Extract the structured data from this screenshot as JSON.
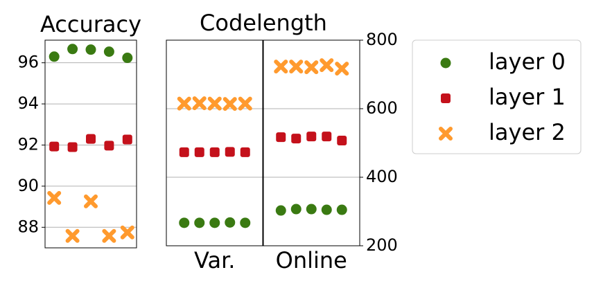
{
  "chart_data": [
    {
      "type": "scatter",
      "title": "Accuracy",
      "categories": [
        null,
        null,
        null,
        null,
        null
      ],
      "ylim": [
        87,
        97.1
      ],
      "yticks": [
        88,
        90,
        92,
        94,
        96
      ],
      "grid": true,
      "series": [
        {
          "color": "#3a7a12",
          "marker": "circle",
          "values": [
            96.3,
            96.67,
            96.64,
            96.54,
            96.24
          ]
        },
        {
          "color": "#c4111b",
          "marker": "square",
          "values": [
            91.93,
            91.9,
            92.3,
            91.97,
            92.27
          ]
        },
        {
          "color": "#ff9a2e",
          "marker": "x",
          "values": [
            89.43,
            87.58,
            89.26,
            87.58,
            87.75
          ]
        }
      ]
    },
    {
      "type": "grouped-scatter",
      "title": "Codelength",
      "groups": [
        "Var.",
        "Online"
      ],
      "points_per_group": 5,
      "y2lim": [
        200,
        800
      ],
      "y2ticks": [
        200,
        400,
        600,
        800
      ],
      "grid": true,
      "legend": "outside right",
      "series": [
        {
          "name": "layer 0",
          "color": "#3a7a12",
          "marker": "circle",
          "axis": "y2",
          "values": [
            267,
            267,
            267,
            268,
            267,
            303,
            307,
            307,
            305,
            305
          ]
        },
        {
          "name": "layer 1",
          "color": "#c4111b",
          "marker": "square",
          "axis": "y2",
          "values": [
            473,
            473,
            473,
            474,
            473,
            517,
            513,
            519,
            519,
            507
          ]
        },
        {
          "name": "layer 2",
          "color": "#ff9a2e",
          "marker": "x",
          "axis": "y2",
          "values": [
            615,
            616,
            615,
            614,
            615,
            723,
            723,
            721,
            727,
            717
          ]
        }
      ]
    }
  ]
}
